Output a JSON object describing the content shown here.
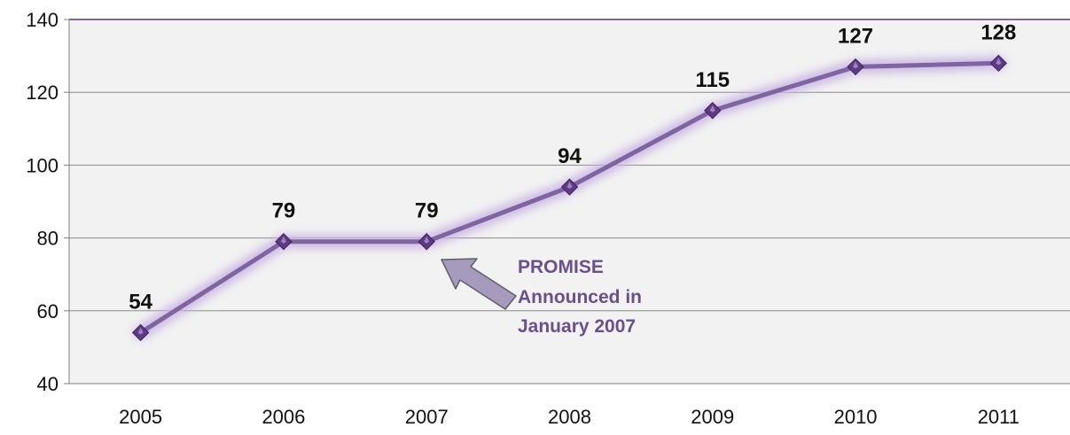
{
  "chart_data": {
    "type": "line",
    "categories": [
      "2005",
      "2006",
      "2007",
      "2008",
      "2009",
      "2010",
      "2011"
    ],
    "series": [
      {
        "values": [
          54,
          79,
          79,
          94,
          115,
          127,
          128
        ]
      }
    ],
    "data_labels": [
      "54",
      "79",
      "79",
      "94",
      "115",
      "127",
      "128"
    ],
    "y_ticks": [
      "40",
      "60",
      "80",
      "100",
      "120",
      "140"
    ],
    "ylim": [
      40,
      140
    ],
    "grid": true,
    "plot_background": "#f2f2f2",
    "line_color": "#8064a2",
    "marker_color": "#5e3a86",
    "annotation": {
      "lines": [
        "PROMISE",
        "Announced in",
        "January 2007"
      ],
      "color": "#6b4f8f",
      "points_to": "2007"
    }
  }
}
